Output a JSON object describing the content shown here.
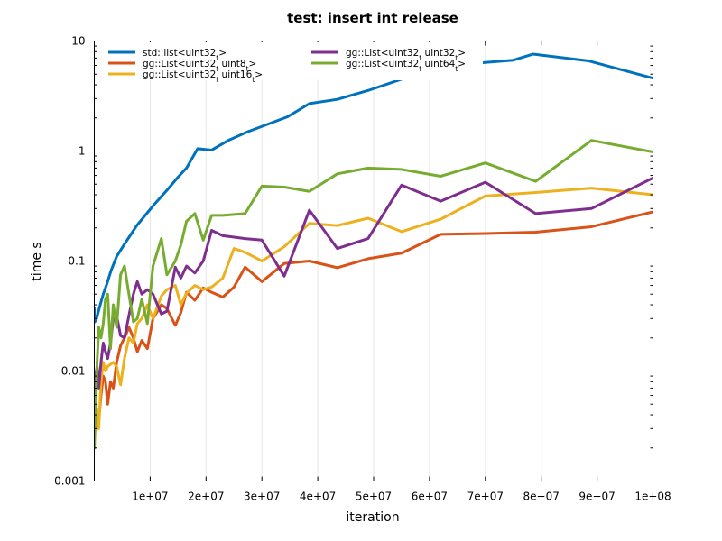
{
  "chart_data": {
    "type": "line",
    "title": "test: insert int release",
    "xlabel": "iteration",
    "ylabel": "time s",
    "xlim": [
      0,
      100000000
    ],
    "ylim": [
      0.001,
      10
    ],
    "y_scale": "log",
    "grid": true,
    "legend_position": "top-left, two columns",
    "x_ticks": [
      {
        "value": 10000000,
        "label": "1e+07"
      },
      {
        "value": 20000000,
        "label": "2e+07"
      },
      {
        "value": 30000000,
        "label": "3e+07"
      },
      {
        "value": 40000000,
        "label": "4e+07"
      },
      {
        "value": 50000000,
        "label": "5e+07"
      },
      {
        "value": 60000000,
        "label": "6e+07"
      },
      {
        "value": 70000000,
        "label": "7e+07"
      },
      {
        "value": 80000000,
        "label": "8e+07"
      },
      {
        "value": 90000000,
        "label": "9e+07"
      },
      {
        "value": 100000000,
        "label": "1e+08"
      }
    ],
    "y_ticks": [
      {
        "value": 0.001,
        "label": "0.001"
      },
      {
        "value": 0.01,
        "label": "0.01"
      },
      {
        "value": 0.1,
        "label": "0.1"
      },
      {
        "value": 1,
        "label": "1"
      },
      {
        "value": 10,
        "label": "10"
      }
    ],
    "series": [
      {
        "name": "std::list<uint32_t>",
        "name_parts": [
          {
            "t": "std::list<uint32"
          },
          {
            "t": "t",
            "sub": true
          },
          {
            "t": ">"
          }
        ],
        "color": "#0072bd",
        "x": [
          0,
          100000,
          400000,
          1000000,
          1600000,
          2300000,
          3000000,
          4000000,
          5300000,
          6400000,
          7600000,
          9100000,
          10800000,
          13000000,
          15000000,
          16500000,
          18500000,
          21000000,
          24000000,
          27500000,
          31000000,
          34600000,
          38500000,
          43500000,
          49000000,
          55000000,
          61500000,
          68500000,
          75000000,
          78500000,
          88500000,
          100000000
        ],
        "y": [
          0.037,
          0.028,
          0.03,
          0.039,
          0.05,
          0.063,
          0.082,
          0.11,
          0.14,
          0.17,
          0.21,
          0.26,
          0.33,
          0.44,
          0.58,
          0.7,
          1.05,
          1.02,
          1.25,
          1.5,
          1.75,
          2.05,
          2.7,
          2.95,
          3.55,
          4.5,
          5.5,
          6.3,
          6.7,
          7.6,
          6.6,
          4.6
        ]
      },
      {
        "name": "gg::List<uint32_t uint8_t>",
        "name_parts": [
          {
            "t": "gg::List<uint32"
          },
          {
            "t": "t",
            "sub": true
          },
          {
            "t": " uint8"
          },
          {
            "t": "t",
            "sub": true
          },
          {
            "t": ">"
          }
        ],
        "color": "#d95319",
        "x": [
          0,
          200000,
          500000,
          800000,
          1200000,
          1600000,
          2000000,
          2400000,
          2900000,
          3400000,
          4000000,
          4700000,
          5400000,
          6200000,
          7000000,
          7700000,
          8500000,
          9500000,
          10500000,
          12000000,
          13000000,
          14500000,
          15500000,
          16500000,
          18000000,
          19500000,
          21000000,
          23000000,
          25000000,
          27000000,
          30000000,
          34000000,
          38500000,
          43500000,
          49000000,
          55000000,
          62000000,
          70000000,
          79000000,
          89000000,
          100000000
        ],
        "y": [
          0.0055,
          0.004,
          0.003,
          0.0035,
          0.006,
          0.009,
          0.008,
          0.005,
          0.008,
          0.007,
          0.012,
          0.017,
          0.02,
          0.025,
          0.02,
          0.015,
          0.019,
          0.016,
          0.03,
          0.04,
          0.037,
          0.026,
          0.034,
          0.052,
          0.044,
          0.057,
          0.052,
          0.047,
          0.058,
          0.088,
          0.065,
          0.095,
          0.1,
          0.087,
          0.105,
          0.118,
          0.175,
          0.178,
          0.183,
          0.205,
          0.28
        ]
      },
      {
        "name": "gg::List<uint32_t uint16_t>",
        "name_parts": [
          {
            "t": "gg::List<uint32"
          },
          {
            "t": "t",
            "sub": true
          },
          {
            "t": " uint16"
          },
          {
            "t": "t",
            "sub": true
          },
          {
            "t": ">"
          }
        ],
        "color": "#edb120",
        "x": [
          0,
          200000,
          500000,
          800000,
          1200000,
          1600000,
          2000000,
          2400000,
          2900000,
          3400000,
          4000000,
          4700000,
          5400000,
          6200000,
          7000000,
          7700000,
          8500000,
          9500000,
          10500000,
          12000000,
          13000000,
          14500000,
          15500000,
          16500000,
          18000000,
          19500000,
          21000000,
          23000000,
          25000000,
          27000000,
          30000000,
          34000000,
          38500000,
          43500000,
          49000000,
          55000000,
          62000000,
          70000000,
          79000000,
          89000000,
          100000000
        ],
        "y": [
          0.002,
          0.0035,
          0.0045,
          0.003,
          0.008,
          0.012,
          0.01,
          0.011,
          0.0115,
          0.012,
          0.011,
          0.0075,
          0.013,
          0.02,
          0.018,
          0.027,
          0.03,
          0.04,
          0.03,
          0.048,
          0.055,
          0.06,
          0.04,
          0.051,
          0.06,
          0.055,
          0.058,
          0.07,
          0.13,
          0.12,
          0.1,
          0.135,
          0.22,
          0.21,
          0.245,
          0.185,
          0.24,
          0.39,
          0.42,
          0.46,
          0.4
        ]
      },
      {
        "name": "gg::List<uint32_t uint32_t>",
        "name_parts": [
          {
            "t": "gg::List<uint32"
          },
          {
            "t": "t",
            "sub": true
          },
          {
            "t": " uint32"
          },
          {
            "t": "t",
            "sub": true
          },
          {
            "t": ">"
          }
        ],
        "color": "#7e2f8e",
        "x": [
          0,
          200000,
          500000,
          800000,
          1200000,
          1600000,
          2000000,
          2400000,
          2900000,
          3400000,
          4000000,
          4700000,
          5400000,
          6200000,
          7000000,
          7700000,
          8500000,
          9500000,
          10500000,
          12000000,
          13000000,
          14500000,
          15500000,
          16500000,
          18000000,
          19500000,
          21000000,
          23000000,
          25000000,
          27000000,
          30000000,
          34000000,
          38500000,
          43500000,
          49000000,
          55000000,
          62000000,
          70000000,
          79000000,
          89000000,
          100000000
        ],
        "y": [
          0.006,
          0.009,
          0.011,
          0.007,
          0.012,
          0.018,
          0.015,
          0.013,
          0.018,
          0.03,
          0.032,
          0.021,
          0.02,
          0.032,
          0.05,
          0.065,
          0.05,
          0.055,
          0.05,
          0.033,
          0.035,
          0.088,
          0.07,
          0.09,
          0.078,
          0.1,
          0.19,
          0.17,
          0.165,
          0.16,
          0.155,
          0.073,
          0.29,
          0.13,
          0.16,
          0.49,
          0.35,
          0.52,
          0.27,
          0.3,
          0.57
        ]
      },
      {
        "name": "gg::List<uint32_t uint64_t>",
        "name_parts": [
          {
            "t": "gg::List<uint32"
          },
          {
            "t": "t",
            "sub": true
          },
          {
            "t": " uint64"
          },
          {
            "t": "t",
            "sub": true
          },
          {
            "t": ">"
          }
        ],
        "color": "#77ac30",
        "x": [
          0,
          200000,
          500000,
          800000,
          1200000,
          1600000,
          2000000,
          2400000,
          2900000,
          3400000,
          4000000,
          4700000,
          5400000,
          6200000,
          7000000,
          7700000,
          8500000,
          9500000,
          10500000,
          12000000,
          13000000,
          14500000,
          15500000,
          16500000,
          18000000,
          19500000,
          21000000,
          23000000,
          25000000,
          27000000,
          30000000,
          34000000,
          38500000,
          43500000,
          49000000,
          55000000,
          62000000,
          70000000,
          79000000,
          89000000,
          100000000
        ],
        "y": [
          0.002,
          0.004,
          0.012,
          0.025,
          0.02,
          0.027,
          0.045,
          0.05,
          0.016,
          0.04,
          0.025,
          0.075,
          0.09,
          0.05,
          0.028,
          0.03,
          0.045,
          0.027,
          0.09,
          0.16,
          0.075,
          0.1,
          0.14,
          0.23,
          0.27,
          0.155,
          0.26,
          0.26,
          0.265,
          0.27,
          0.48,
          0.47,
          0.43,
          0.62,
          0.7,
          0.68,
          0.59,
          0.78,
          0.53,
          1.25,
          0.98
        ]
      }
    ]
  }
}
